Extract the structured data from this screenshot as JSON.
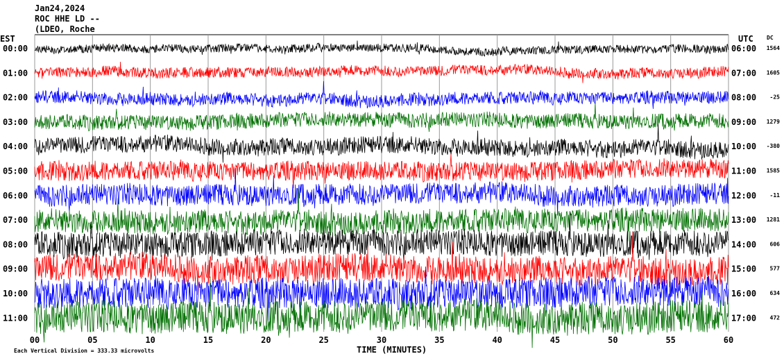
{
  "chart_data": {
    "type": "helicorder",
    "title_lines": [
      "Jan24,2024",
      "ROC HHE LD --",
      "(LDEO, Roche"
    ],
    "left_label": "EST",
    "right_label": "UTC",
    "dc_label": "DC",
    "xlabel": "TIME (MINUTES)",
    "footnote": "Each Vertical Division =  333.33 microvolts",
    "xlim": [
      0,
      60
    ],
    "xticks": [
      {
        "value": 0,
        "label": "00"
      },
      {
        "value": 5,
        "label": "05"
      },
      10,
      15,
      20,
      25,
      30,
      35,
      40,
      45,
      50,
      55,
      60
    ],
    "rows": [
      {
        "est": "00:00",
        "utc": "06:00",
        "dc": 1564,
        "color": "#000000"
      },
      {
        "est": "01:00",
        "utc": "07:00",
        "dc": 1605,
        "color": "#ff0000"
      },
      {
        "est": "02:00",
        "utc": "08:00",
        "dc": -25,
        "color": "#0000ff"
      },
      {
        "est": "03:00",
        "utc": "09:00",
        "dc": 1279,
        "color": "#007000"
      },
      {
        "est": "04:00",
        "utc": "10:00",
        "dc": -380,
        "color": "#000000"
      },
      {
        "est": "05:00",
        "utc": "11:00",
        "dc": 1585,
        "color": "#ff0000"
      },
      {
        "est": "06:00",
        "utc": "12:00",
        "dc": -11,
        "color": "#0000ff"
      },
      {
        "est": "07:00",
        "utc": "13:00",
        "dc": 1281,
        "color": "#007000"
      },
      {
        "est": "08:00",
        "utc": "14:00",
        "dc": 606,
        "color": "#000000"
      },
      {
        "est": "09:00",
        "utc": "15:00",
        "dc": 577,
        "color": "#ff0000"
      },
      {
        "est": "10:00",
        "utc": "16:00",
        "dc": 634,
        "color": "#0000ff"
      },
      {
        "est": "11:00",
        "utc": "17:00",
        "dc": 472,
        "color": "#007000"
      }
    ]
  }
}
